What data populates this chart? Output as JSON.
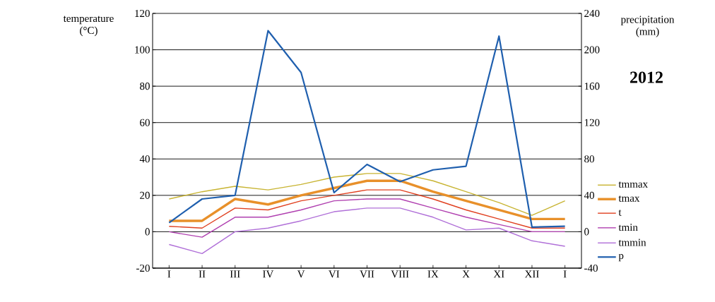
{
  "chart_data": {
    "type": "line",
    "legend_title": "2012",
    "ylabel": "temperature (°C)",
    "y2label": "precipitation (mm)",
    "categories": [
      "I",
      "II",
      "III",
      "IV",
      "V",
      "VI",
      "VII",
      "VIII",
      "IX",
      "X",
      "XI",
      "XII",
      "I"
    ],
    "series": [
      {
        "name": "tmmax",
        "color": "#c8b432",
        "values": [
          18,
          22,
          25,
          23,
          26,
          30,
          32,
          32,
          28,
          22,
          16,
          9,
          17
        ]
      },
      {
        "name": "tmax",
        "color": "#e8902a",
        "values": [
          6,
          6,
          18,
          15,
          20,
          24,
          28,
          28,
          22,
          17,
          12,
          7,
          7
        ]
      },
      {
        "name": "t",
        "color": "#e04020",
        "values": [
          3,
          2,
          13,
          12,
          17,
          20,
          23,
          23,
          18,
          12,
          7,
          2,
          2
        ]
      },
      {
        "name": "tmin",
        "color": "#b040b0",
        "values": [
          0,
          -3,
          8,
          8,
          12,
          17,
          18,
          18,
          13,
          8,
          4,
          0,
          0
        ]
      },
      {
        "name": "tmmin",
        "color": "#b070d8",
        "values": [
          -7,
          -12,
          0,
          2,
          6,
          11,
          13,
          13,
          8,
          1,
          2,
          -5,
          -8
        ]
      },
      {
        "name": "p",
        "color": "#1f5fae",
        "axis": "y2",
        "values": [
          10,
          36,
          40,
          221,
          175,
          43,
          74,
          55,
          68,
          72,
          215,
          5,
          6
        ]
      }
    ],
    "ylim": [
      -20,
      120
    ],
    "yticks": [
      -20,
      0,
      20,
      40,
      60,
      80,
      100,
      120
    ],
    "y2lim": [
      -40,
      240
    ],
    "y2ticks": [
      -40,
      0,
      40,
      80,
      120,
      160,
      200,
      240
    ],
    "grid": "y",
    "legend": "right",
    "marker": "none",
    "line_style": "solid"
  }
}
